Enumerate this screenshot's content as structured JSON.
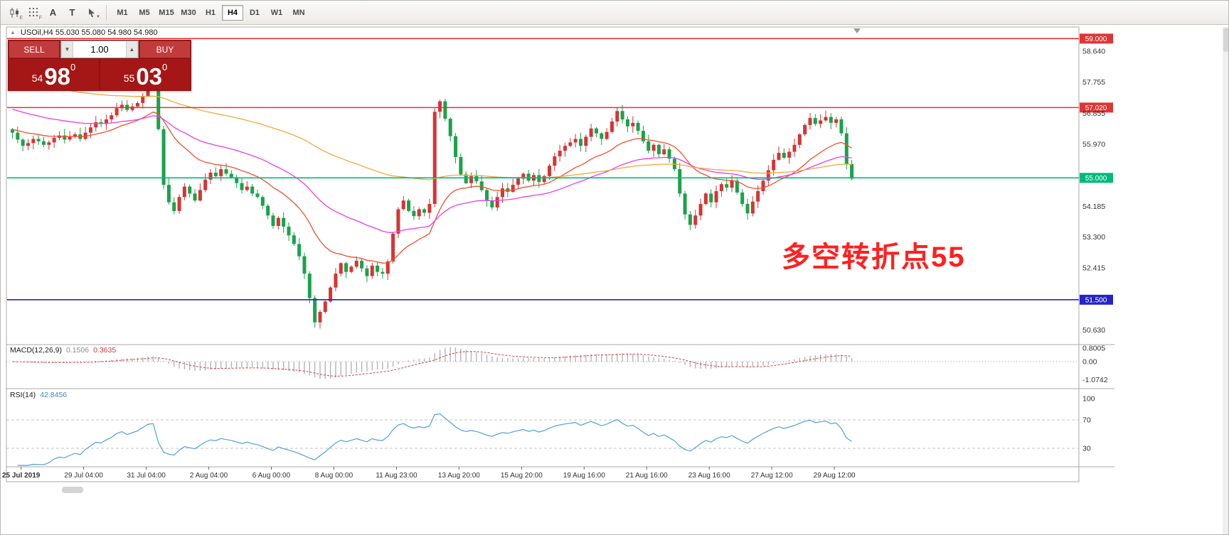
{
  "toolbar": {
    "tools": [
      {
        "name": "candlestick-chart-icon",
        "badge": "E"
      },
      {
        "name": "grid-icon",
        "badge": "F"
      },
      {
        "name": "insert-text-icon",
        "label": "A"
      },
      {
        "name": "text-label-icon",
        "label": "T"
      },
      {
        "name": "cursor-tool-icon",
        "caret": "▼"
      }
    ],
    "timeframes": [
      "M1",
      "M5",
      "M15",
      "M30",
      "H1",
      "H4",
      "D1",
      "W1",
      "MN"
    ],
    "active_timeframe": "H4"
  },
  "trade_panel": {
    "sell_label": "SELL",
    "buy_label": "BUY",
    "volume": "1.00",
    "sell_price": {
      "small": "54",
      "big": "98",
      "sup": "0"
    },
    "buy_price": {
      "small": "55",
      "big": "03",
      "sup": "0"
    }
  },
  "chart": {
    "title": "USOil,H4  55.030 55.080 54.980 54.980",
    "annotation": "多空转折点55"
  },
  "chart_data": {
    "type": "candlestick",
    "symbol": "USOil",
    "timeframe": "H4",
    "ohlc_title": {
      "open": "55.030",
      "high": "55.080",
      "low": "54.980",
      "close": "54.980"
    },
    "first_open": 56.4,
    "closes": [
      56.3,
      56.1,
      55.92,
      56.0,
      56.12,
      56.05,
      55.95,
      56.02,
      56.15,
      56.22,
      56.1,
      56.18,
      56.25,
      56.12,
      56.3,
      56.45,
      56.6,
      56.55,
      56.68,
      56.8,
      57.0,
      57.1,
      56.95,
      57.05,
      57.15,
      57.35,
      57.58,
      57.62,
      56.4,
      54.8,
      54.3,
      54.05,
      54.45,
      54.75,
      54.55,
      54.35,
      54.65,
      54.95,
      55.15,
      55.05,
      55.25,
      55.12,
      55.02,
      54.85,
      54.65,
      54.75,
      54.55,
      54.45,
      54.2,
      53.92,
      53.62,
      53.85,
      53.6,
      53.35,
      53.1,
      52.75,
      52.25,
      51.55,
      50.85,
      51.15,
      51.45,
      51.85,
      52.25,
      52.55,
      52.3,
      52.45,
      52.62,
      52.4,
      52.18,
      52.48,
      52.3,
      52.25,
      52.6,
      53.4,
      54.1,
      54.35,
      54.05,
      53.9,
      54.1,
      54.0,
      54.25,
      56.9,
      57.2,
      56.7,
      56.2,
      55.6,
      55.1,
      54.85,
      55.05,
      54.9,
      54.65,
      54.35,
      54.15,
      54.45,
      54.7,
      54.6,
      54.8,
      54.98,
      55.12,
      54.92,
      55.08,
      54.88,
      55.05,
      55.35,
      55.62,
      55.78,
      55.92,
      56.02,
      56.12,
      55.92,
      56.18,
      56.42,
      56.28,
      56.12,
      56.32,
      56.62,
      56.92,
      56.68,
      56.48,
      56.58,
      56.35,
      56.05,
      55.78,
      55.95,
      55.68,
      55.82,
      55.55,
      55.25,
      54.55,
      53.95,
      53.65,
      53.92,
      54.25,
      54.55,
      54.3,
      54.62,
      54.82,
      54.72,
      54.92,
      54.58,
      54.25,
      53.98,
      54.32,
      54.62,
      54.92,
      55.22,
      55.52,
      55.72,
      55.58,
      55.75,
      55.95,
      56.25,
      56.52,
      56.72,
      56.55,
      56.65,
      56.75,
      56.58,
      56.68,
      56.28,
      55.4,
      54.98
    ],
    "levels": [
      {
        "price": 59.0,
        "label": "59.000",
        "color": "#e03535"
      },
      {
        "price": 57.02,
        "label": "57.020",
        "color": "#e03535"
      },
      {
        "price": 55.0,
        "label": "55.000",
        "color": "#00b87c"
      },
      {
        "price": 51.5,
        "label": "51.500",
        "color": "#2424c8"
      }
    ],
    "y_axis_labels": [
      {
        "text": "58.640",
        "price": 58.64
      },
      {
        "text": "57.755",
        "price": 57.755
      },
      {
        "text": "56.855",
        "price": 56.855
      },
      {
        "text": "55.970",
        "price": 55.97
      },
      {
        "text": "54.185",
        "price": 54.185
      },
      {
        "text": "53.300",
        "price": 53.3
      },
      {
        "text": "52.415",
        "price": 52.415
      },
      {
        "text": "50.630",
        "price": 50.63
      }
    ],
    "x_axis_labels": [
      "25 Jul 2019",
      "29 Jul 04:00",
      "31 Jul 04:00",
      "2 Aug 04:00",
      "6 Aug 00:00",
      "8 Aug 00:00",
      "11 Aug 23:00",
      "13 Aug 20:00",
      "15 Aug 20:00",
      "19 Aug 16:00",
      "21 Aug 16:00",
      "23 Aug 16:00",
      "27 Aug 12:00",
      "29 Aug 12:00"
    ],
    "ma_lines": [
      {
        "name": "ma-fast-line",
        "color": "#f0512c",
        "alpha": 0.1,
        "seed": 56.4
      },
      {
        "name": "ma-mid-line",
        "color": "#e83ee8",
        "alpha": 0.045,
        "seed": 57.0
      },
      {
        "name": "ma-slow-line",
        "color": "#f2a93b",
        "alpha": 0.018,
        "seed": 57.85
      }
    ],
    "indicators": {
      "macd": {
        "label": "MACD(12,26,9)",
        "value_main": "0.1506",
        "value_signal": "0.3635",
        "params": [
          12,
          26,
          9
        ],
        "axis": [
          "0.8005",
          "0.00",
          "-1.0742"
        ]
      },
      "rsi": {
        "label": "RSI(14)",
        "value": "42.8456",
        "period": 14,
        "levels": [
          70,
          30
        ],
        "axis": [
          "100",
          "70",
          "30"
        ]
      }
    },
    "colors": {
      "up": "#d63434",
      "down": "#1aa24a",
      "macd_hist": "#b4b4b4",
      "macd_signal": "#d04040",
      "rsi_line": "#4da1e0"
    }
  }
}
